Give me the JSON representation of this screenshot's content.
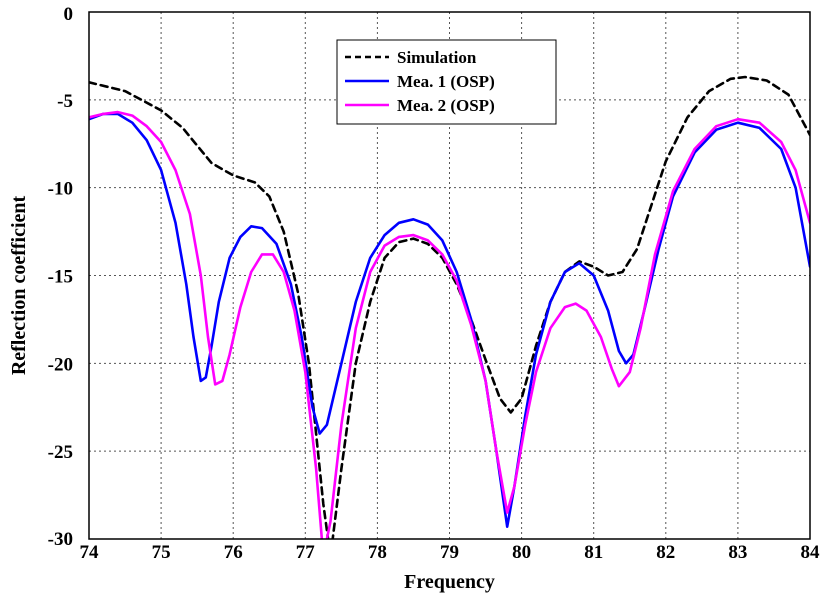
{
  "chart_data": {
    "type": "line",
    "xlabel": "Frequency",
    "ylabel": "Reflection coefficient",
    "xlim": [
      74,
      84
    ],
    "ylim": [
      -30,
      0
    ],
    "xticks": [
      74,
      75,
      76,
      77,
      78,
      79,
      80,
      81,
      82,
      83,
      84
    ],
    "yticks": [
      0,
      -5,
      -10,
      -15,
      -20,
      -25,
      -30
    ],
    "grid": true,
    "legend_position": "top-center",
    "series": [
      {
        "name": "Simulation",
        "color": "#000000",
        "dash": "dashed",
        "points": [
          [
            74,
            -4.0
          ],
          [
            74.5,
            -4.5
          ],
          [
            75,
            -5.6
          ],
          [
            75.3,
            -6.6
          ],
          [
            75.5,
            -7.6
          ],
          [
            75.7,
            -8.6
          ],
          [
            76,
            -9.3
          ],
          [
            76.3,
            -9.7
          ],
          [
            76.5,
            -10.5
          ],
          [
            76.7,
            -12.5
          ],
          [
            76.9,
            -16
          ],
          [
            77.05,
            -20
          ],
          [
            77.15,
            -24
          ],
          [
            77.25,
            -28
          ],
          [
            77.35,
            -31
          ],
          [
            77.5,
            -26
          ],
          [
            77.7,
            -20
          ],
          [
            77.9,
            -16.5
          ],
          [
            78.1,
            -14
          ],
          [
            78.3,
            -13.1
          ],
          [
            78.5,
            -12.9
          ],
          [
            78.7,
            -13.2
          ],
          [
            78.9,
            -14
          ],
          [
            79.1,
            -15.5
          ],
          [
            79.3,
            -17.5
          ],
          [
            79.5,
            -19.8
          ],
          [
            79.7,
            -22
          ],
          [
            79.85,
            -22.8
          ],
          [
            80,
            -22
          ],
          [
            80.2,
            -19
          ],
          [
            80.4,
            -16.5
          ],
          [
            80.6,
            -14.8
          ],
          [
            80.8,
            -14.2
          ],
          [
            81,
            -14.5
          ],
          [
            81.2,
            -15
          ],
          [
            81.4,
            -14.8
          ],
          [
            81.6,
            -13.5
          ],
          [
            81.8,
            -11
          ],
          [
            82,
            -8.5
          ],
          [
            82.3,
            -6
          ],
          [
            82.6,
            -4.5
          ],
          [
            82.9,
            -3.8
          ],
          [
            83.1,
            -3.7
          ],
          [
            83.4,
            -3.9
          ],
          [
            83.7,
            -4.7
          ],
          [
            84,
            -7
          ]
        ]
      },
      {
        "name": "Mea. 1 (OSP)",
        "color": "#0000ff",
        "dash": "solid",
        "points": [
          [
            74,
            -6.1
          ],
          [
            74.2,
            -5.8
          ],
          [
            74.4,
            -5.8
          ],
          [
            74.6,
            -6.3
          ],
          [
            74.8,
            -7.3
          ],
          [
            75,
            -9
          ],
          [
            75.2,
            -12
          ],
          [
            75.35,
            -15.5
          ],
          [
            75.45,
            -18.5
          ],
          [
            75.55,
            -21
          ],
          [
            75.62,
            -20.8
          ],
          [
            75.7,
            -19
          ],
          [
            75.8,
            -16.5
          ],
          [
            75.95,
            -14
          ],
          [
            76.1,
            -12.8
          ],
          [
            76.25,
            -12.2
          ],
          [
            76.4,
            -12.3
          ],
          [
            76.6,
            -13.2
          ],
          [
            76.8,
            -15.5
          ],
          [
            76.95,
            -18.5
          ],
          [
            77.1,
            -22.5
          ],
          [
            77.2,
            -24
          ],
          [
            77.3,
            -23.5
          ],
          [
            77.5,
            -20
          ],
          [
            77.7,
            -16.5
          ],
          [
            77.9,
            -14
          ],
          [
            78.1,
            -12.7
          ],
          [
            78.3,
            -12
          ],
          [
            78.5,
            -11.8
          ],
          [
            78.7,
            -12.1
          ],
          [
            78.9,
            -13
          ],
          [
            79.1,
            -14.8
          ],
          [
            79.3,
            -17.5
          ],
          [
            79.5,
            -21
          ],
          [
            79.65,
            -25
          ],
          [
            79.8,
            -29.3
          ],
          [
            79.9,
            -27
          ],
          [
            80.05,
            -23
          ],
          [
            80.2,
            -19.5
          ],
          [
            80.4,
            -16.5
          ],
          [
            80.6,
            -14.8
          ],
          [
            80.8,
            -14.3
          ],
          [
            81,
            -15
          ],
          [
            81.2,
            -17
          ],
          [
            81.35,
            -19.3
          ],
          [
            81.45,
            -20
          ],
          [
            81.55,
            -19.5
          ],
          [
            81.7,
            -17
          ],
          [
            81.9,
            -13.5
          ],
          [
            82.1,
            -10.5
          ],
          [
            82.4,
            -8
          ],
          [
            82.7,
            -6.7
          ],
          [
            83,
            -6.3
          ],
          [
            83.3,
            -6.6
          ],
          [
            83.6,
            -7.8
          ],
          [
            83.8,
            -10
          ],
          [
            84,
            -14.5
          ]
        ]
      },
      {
        "name": "Mea. 2 (OSP)",
        "color": "#ff00ff",
        "dash": "solid",
        "points": [
          [
            74,
            -6.0
          ],
          [
            74.2,
            -5.8
          ],
          [
            74.4,
            -5.7
          ],
          [
            74.6,
            -5.9
          ],
          [
            74.8,
            -6.5
          ],
          [
            75,
            -7.4
          ],
          [
            75.2,
            -9
          ],
          [
            75.4,
            -11.5
          ],
          [
            75.55,
            -15
          ],
          [
            75.65,
            -18.5
          ],
          [
            75.75,
            -21.2
          ],
          [
            75.85,
            -21
          ],
          [
            75.95,
            -19.5
          ],
          [
            76.1,
            -16.8
          ],
          [
            76.25,
            -14.8
          ],
          [
            76.4,
            -13.8
          ],
          [
            76.55,
            -13.8
          ],
          [
            76.7,
            -14.8
          ],
          [
            76.85,
            -17
          ],
          [
            77,
            -20.5
          ],
          [
            77.15,
            -26
          ],
          [
            77.25,
            -31
          ],
          [
            77.35,
            -29
          ],
          [
            77.5,
            -23.5
          ],
          [
            77.7,
            -18
          ],
          [
            77.9,
            -14.8
          ],
          [
            78.1,
            -13.3
          ],
          [
            78.3,
            -12.8
          ],
          [
            78.5,
            -12.7
          ],
          [
            78.7,
            -13
          ],
          [
            78.9,
            -13.8
          ],
          [
            79.1,
            -15.3
          ],
          [
            79.3,
            -17.8
          ],
          [
            79.5,
            -21
          ],
          [
            79.65,
            -25
          ],
          [
            79.8,
            -28.5
          ],
          [
            79.9,
            -27
          ],
          [
            80.05,
            -23.5
          ],
          [
            80.2,
            -20.5
          ],
          [
            80.4,
            -18
          ],
          [
            80.6,
            -16.8
          ],
          [
            80.75,
            -16.6
          ],
          [
            80.9,
            -17
          ],
          [
            81.1,
            -18.5
          ],
          [
            81.25,
            -20.3
          ],
          [
            81.35,
            -21.3
          ],
          [
            81.5,
            -20.5
          ],
          [
            81.65,
            -18
          ],
          [
            81.85,
            -13.8
          ],
          [
            82.1,
            -10.2
          ],
          [
            82.4,
            -7.8
          ],
          [
            82.7,
            -6.5
          ],
          [
            83,
            -6.1
          ],
          [
            83.3,
            -6.3
          ],
          [
            83.6,
            -7.4
          ],
          [
            83.8,
            -9
          ],
          [
            84,
            -12
          ]
        ]
      }
    ]
  }
}
